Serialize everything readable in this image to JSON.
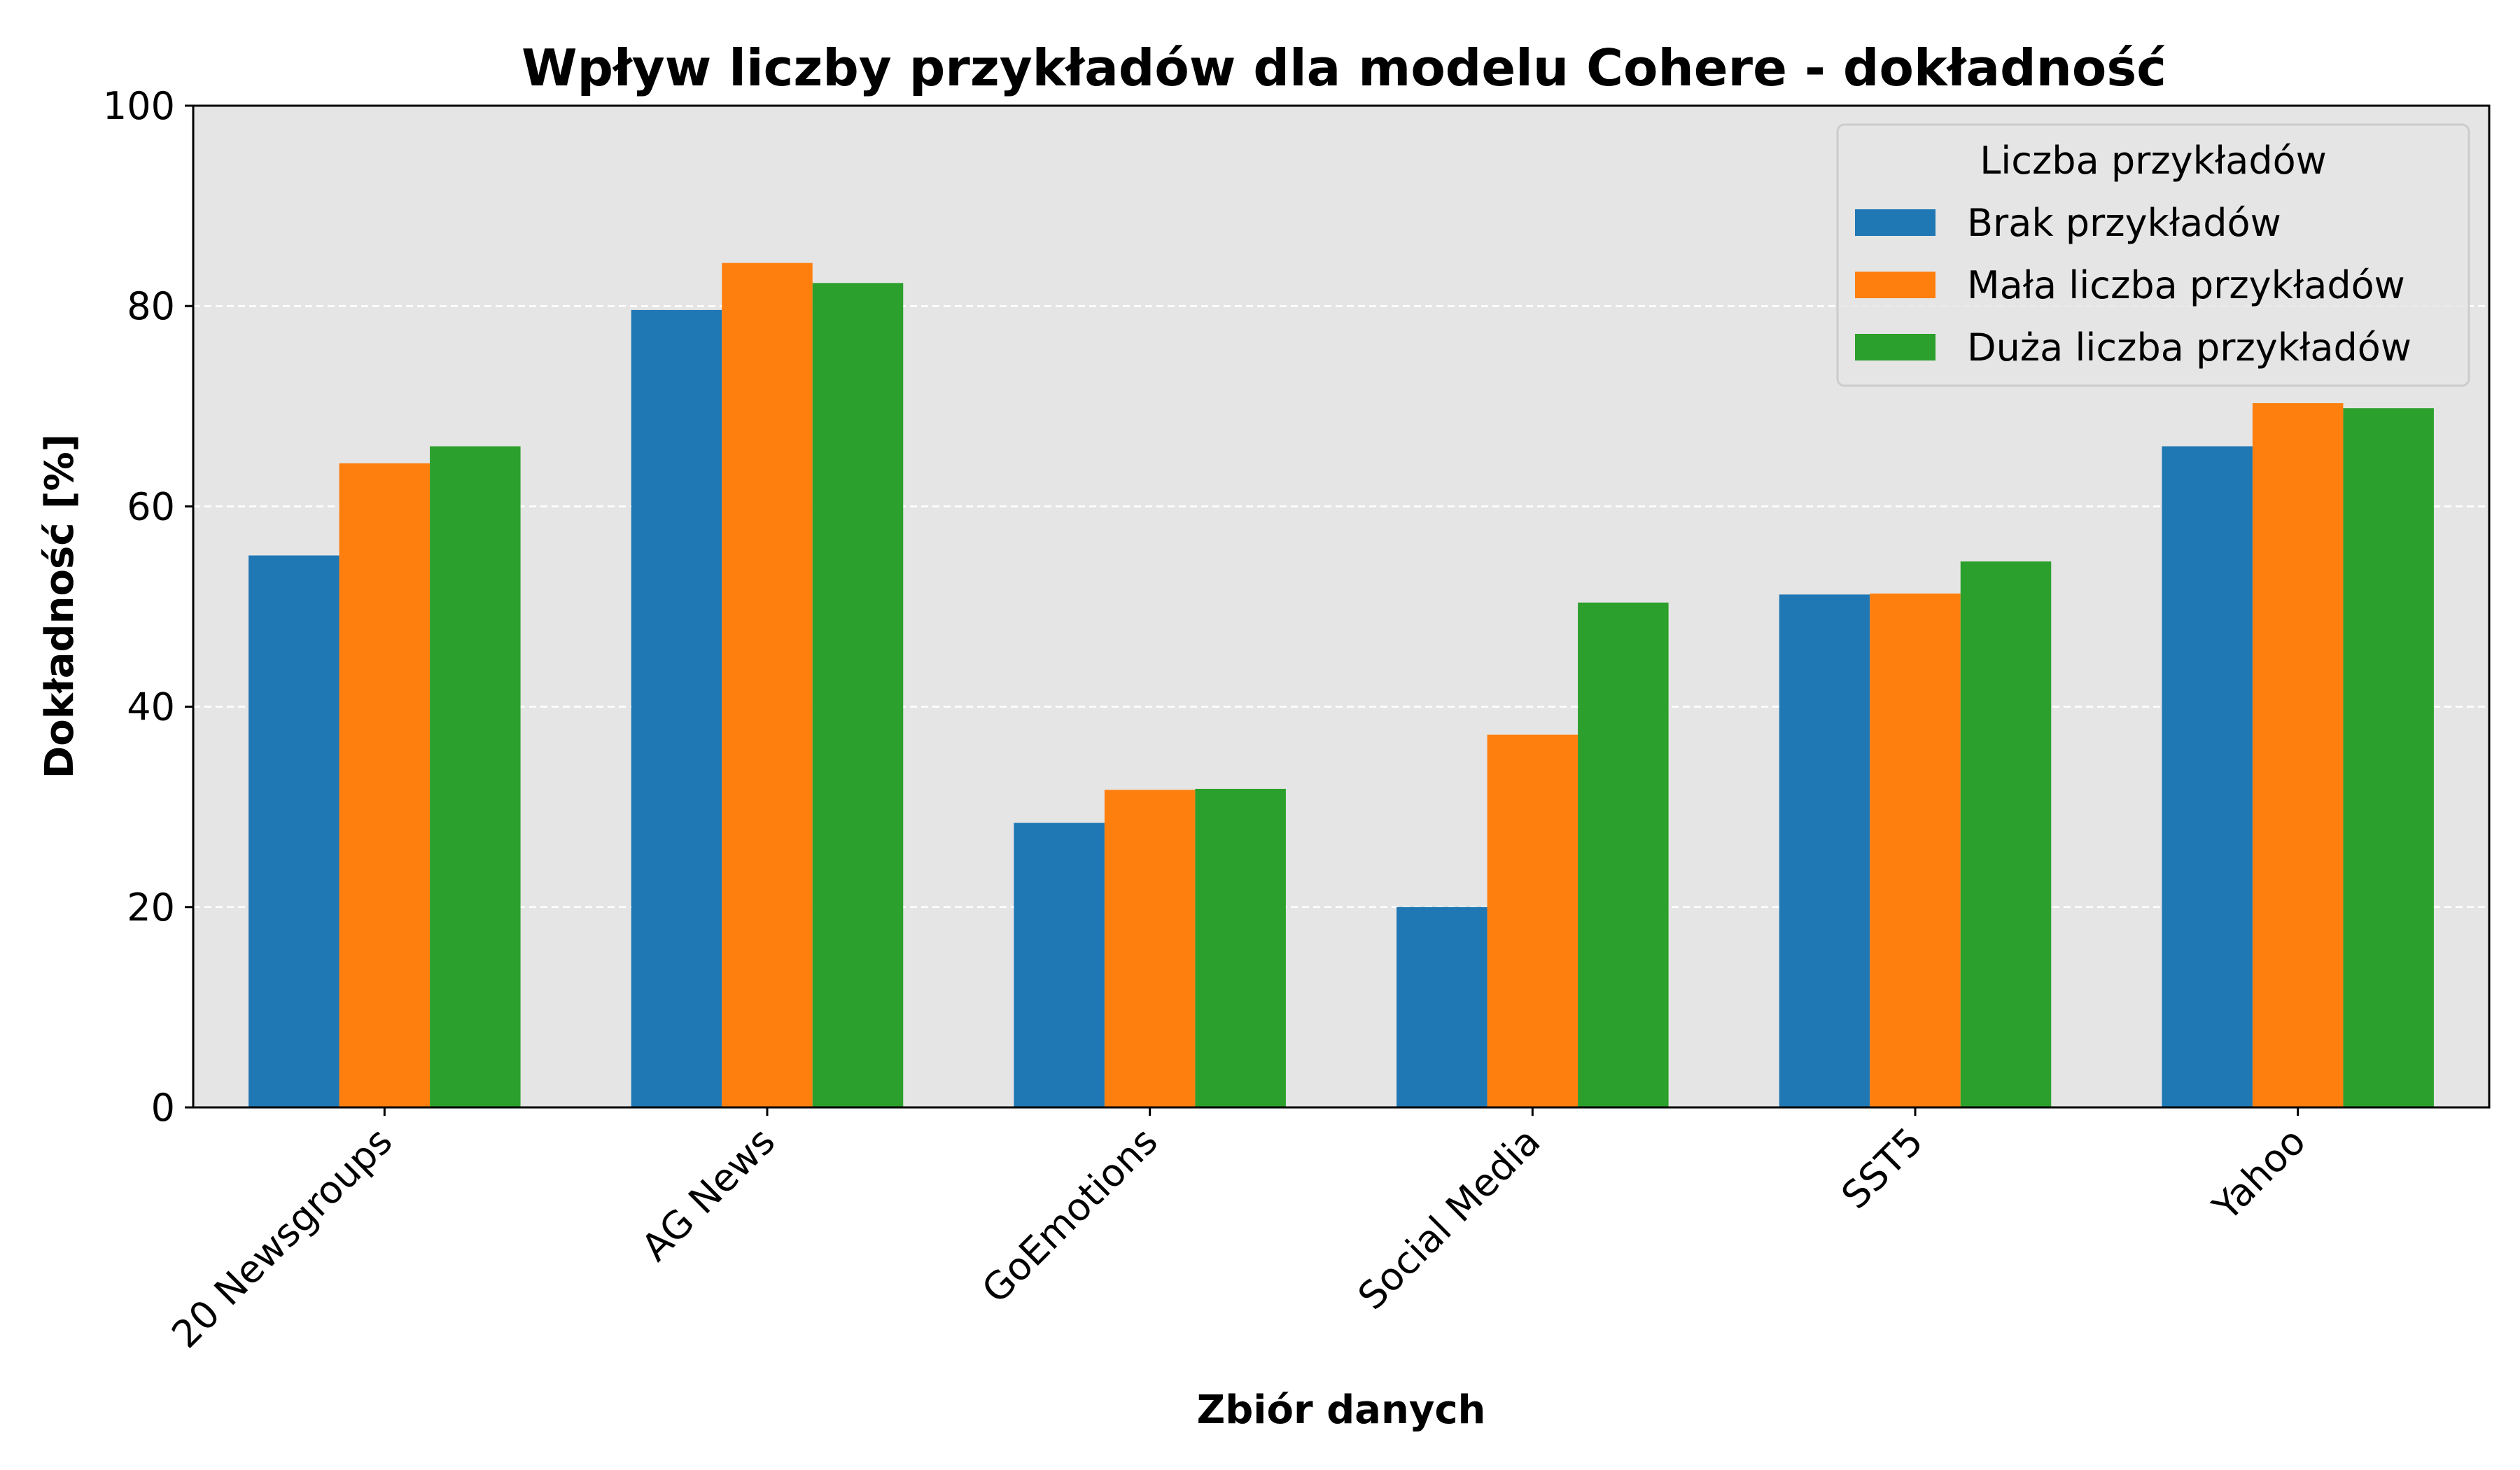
{
  "chart_data": {
    "type": "bar",
    "title": "Wpływ liczby przykładów  dla modelu Cohere - dokładność",
    "xlabel": "Zbiór danych",
    "ylabel": "Dokładność [%]",
    "ylim": [
      0,
      100
    ],
    "yticks": [
      0,
      20,
      40,
      60,
      80,
      100
    ],
    "grid": "horizontal dashed",
    "legend_position": "top-right",
    "legend_title": "Liczba przykładów",
    "categories": [
      "20 Newsgroups",
      "AG News",
      "GoEmotions",
      "Social Media",
      "SST5",
      "Yahoo"
    ],
    "series": [
      {
        "name": "Brak przykładów",
        "color": "#1f77b4",
        "values": [
          55.1,
          79.6,
          28.4,
          20.0,
          51.2,
          66.0
        ]
      },
      {
        "name": "Mała liczba przykładów",
        "color": "#ff7f0e",
        "values": [
          64.3,
          84.3,
          31.7,
          37.2,
          51.3,
          70.3
        ]
      },
      {
        "name": "Duża liczba przykładów",
        "color": "#2ca02c",
        "values": [
          66.0,
          82.3,
          31.8,
          50.4,
          54.5,
          69.8
        ]
      }
    ]
  }
}
